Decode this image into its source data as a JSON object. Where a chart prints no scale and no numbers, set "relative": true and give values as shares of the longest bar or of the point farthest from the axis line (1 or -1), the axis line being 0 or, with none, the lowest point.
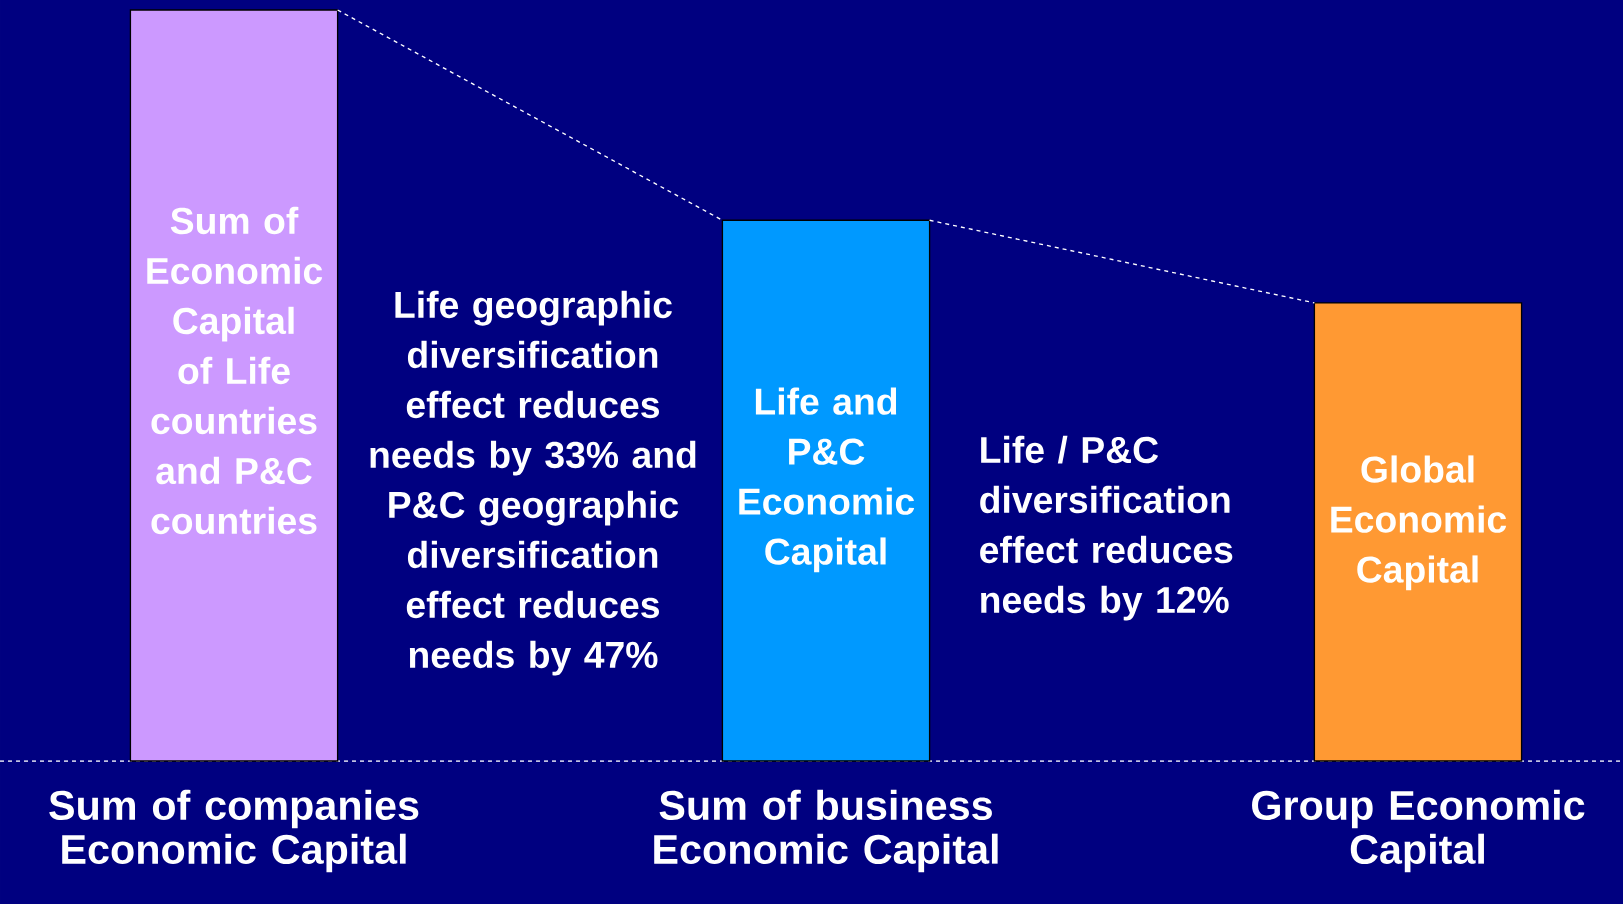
{
  "chart_data": {
    "type": "bar",
    "relative": true,
    "categories": [
      "Sum of companies Economic Capital",
      "Sum of business Economic Capital",
      "Group Economic Capital"
    ],
    "values": [
      1,
      0.72,
      0.61
    ],
    "colors": [
      "#cc99ff",
      "#0099ff",
      "#ff9933"
    ],
    "annotations": [
      "Sum of Economic Capital of Life countries and P&C countries",
      "Life geographic diversification effect reduces needs by 33% and P&C geographic diversification effect reduces needs by 47%",
      "Life and P&C Economic Capital",
      "Life / P&C diversification effect reduces needs by 12%",
      "Global Economic Capital"
    ]
  }
}
